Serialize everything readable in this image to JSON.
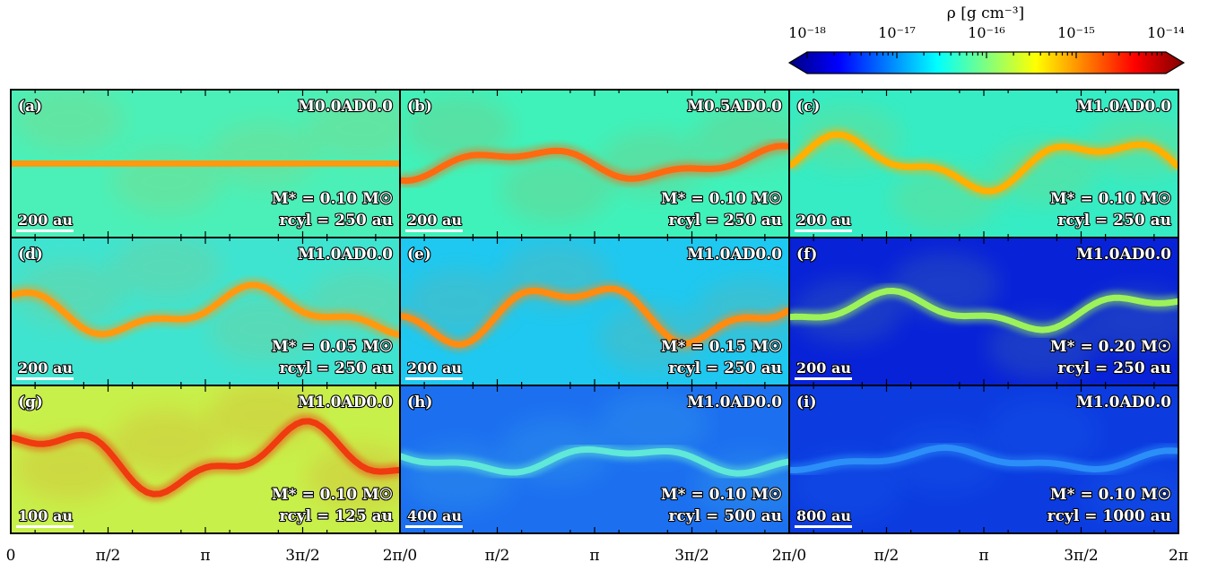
{
  "colorbar": {
    "label": "ρ [g cm⁻³]",
    "scale": "log",
    "range": [
      1e-18,
      1e-14
    ],
    "tick_labels": [
      "10⁻¹⁸",
      "10⁻¹⁷",
      "10⁻¹⁶",
      "10⁻¹⁵",
      "10⁻¹⁴"
    ],
    "colormap": [
      "#00007f",
      "#0000ff",
      "#007fff",
      "#00ffff",
      "#7fff7f",
      "#ffff00",
      "#ff7f00",
      "#ff0000",
      "#7f0000"
    ]
  },
  "x_axis": {
    "range": [
      0,
      6.2832
    ],
    "tick_labels": [
      "0",
      "π/2",
      "π",
      "3π/2",
      "2π/0",
      "π/2",
      "π",
      "3π/2",
      "2π/0",
      "π/2",
      "π",
      "3π/2",
      "2π"
    ]
  },
  "panels": [
    {
      "letter": "(a)",
      "model": "M0.0AD0.0",
      "mass": "M* = 0.10 M☉",
      "rcyl": "rcyl = 250 au",
      "scalebar": "200 au",
      "bg": "#4bf0b8",
      "filament": "#ff9a10",
      "bg_log_rho": -16.7,
      "fil_log_rho": -15.2,
      "amp": 0
    },
    {
      "letter": "(b)",
      "model": "M0.5AD0.0",
      "mass": "M* = 0.10 M☉",
      "rcyl": "rcyl = 250 au",
      "scalebar": "200 au",
      "bg": "#3ff2ba",
      "filament": "#ff6a10",
      "bg_log_rho": -16.7,
      "fil_log_rho": -15.0,
      "amp": 0.12
    },
    {
      "letter": "(c)",
      "model": "M1.0AD0.0",
      "mass": "M* = 0.10 M☉",
      "rcyl": "rcyl = 250 au",
      "scalebar": "200 au",
      "bg": "#35ecc4",
      "filament": "#ffb000",
      "bg_log_rho": -16.8,
      "fil_log_rho": -15.3,
      "amp": 0.2
    },
    {
      "letter": "(d)",
      "model": "M1.0AD0.0",
      "mass": "M* = 0.05 M☉",
      "rcyl": "rcyl = 250 au",
      "scalebar": "200 au",
      "bg": "#3fe4d0",
      "filament": "#ff9a10",
      "bg_log_rho": -16.8,
      "fil_log_rho": -15.2,
      "amp": 0.18
    },
    {
      "letter": "(e)",
      "model": "M1.0AD0.0",
      "mass": "M* = 0.15 M☉",
      "rcyl": "rcyl = 250 au",
      "scalebar": "200 au",
      "bg": "#1ec8f0",
      "filament": "#ff8c10",
      "bg_log_rho": -17.0,
      "fil_log_rho": -15.2,
      "amp": 0.24
    },
    {
      "letter": "(f)",
      "model": "M1.0AD0.0",
      "mass": "M* = 0.20 M☉",
      "rcyl": "rcyl = 250 au",
      "scalebar": "200 au",
      "bg": "#0822d8",
      "filament": "#9cf25a",
      "bg_log_rho": -17.7,
      "fil_log_rho": -15.9,
      "amp": 0.14
    },
    {
      "letter": "(g)",
      "model": "M1.0AD0.0",
      "mass": "M* = 0.10 M☉",
      "rcyl": "rcyl = 125 au",
      "scalebar": "100 au",
      "bg": "#c8f04a",
      "filament": "#f03a10",
      "bg_log_rho": -16.2,
      "fil_log_rho": -14.7,
      "amp": 0.26
    },
    {
      "letter": "(h)",
      "model": "M1.0AD0.0",
      "mass": "M* = 0.10 M☉",
      "rcyl": "rcyl = 500 au",
      "scalebar": "400 au",
      "bg": "#1c70f0",
      "filament": "#60e8d8",
      "bg_log_rho": -17.3,
      "fil_log_rho": -16.6,
      "amp": 0.1
    },
    {
      "letter": "(i)",
      "model": "M1.0AD0.0",
      "mass": "M* = 0.10 M☉",
      "rcyl": "rcyl = 1000 au",
      "scalebar": "800 au",
      "bg": "#0c3ce0",
      "filament": "#2c8ef8",
      "bg_log_rho": -17.6,
      "fil_log_rho": -17.1,
      "amp": 0.08
    }
  ]
}
